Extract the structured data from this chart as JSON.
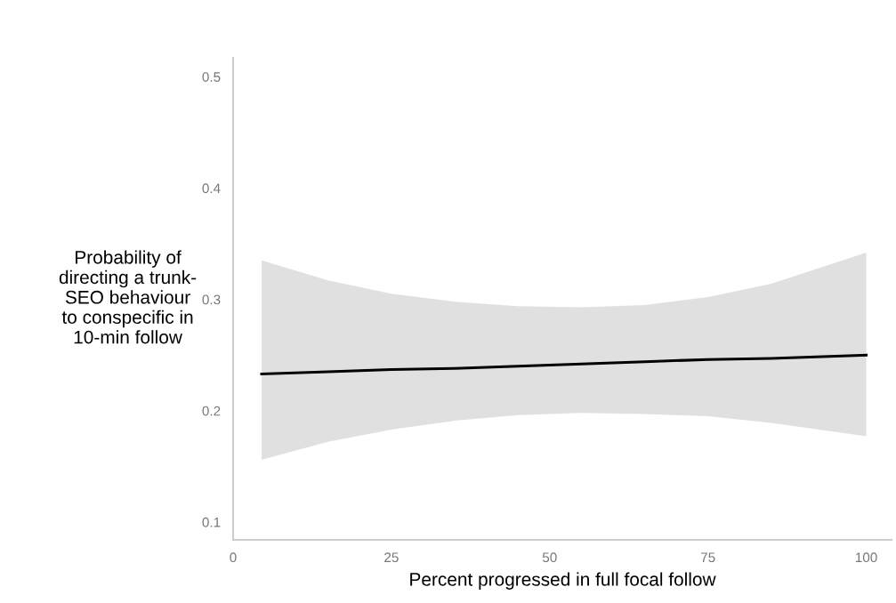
{
  "chart_data": {
    "type": "line",
    "xlabel": "Percent progressed in full focal follow",
    "ylabel": "Probability of\ndirecting a trunk-\nSEO behaviour\nto conspecific in\n10-min follow",
    "x": [
      4.5,
      15,
      25,
      35,
      45,
      55,
      65,
      75,
      85,
      100
    ],
    "series": [
      {
        "color": "#000000",
        "values": [
          0.233,
          0.235,
          0.237,
          0.238,
          0.24,
          0.242,
          0.244,
          0.246,
          0.247,
          0.25
        ],
        "lower": [
          0.156,
          0.172,
          0.183,
          0.191,
          0.196,
          0.198,
          0.197,
          0.195,
          0.189,
          0.177
        ],
        "upper": [
          0.335,
          0.317,
          0.305,
          0.298,
          0.294,
          0.293,
          0.295,
          0.302,
          0.314,
          0.342
        ]
      }
    ],
    "xlim": [
      0,
      104
    ],
    "ylim": [
      0.084,
      0.517
    ],
    "xticks": [
      0,
      25,
      50,
      75,
      100
    ],
    "yticks": [
      0.1,
      0.2,
      0.3,
      0.4,
      0.5
    ],
    "grid": false,
    "legend": false,
    "marker": "none",
    "line_style": "solid"
  }
}
